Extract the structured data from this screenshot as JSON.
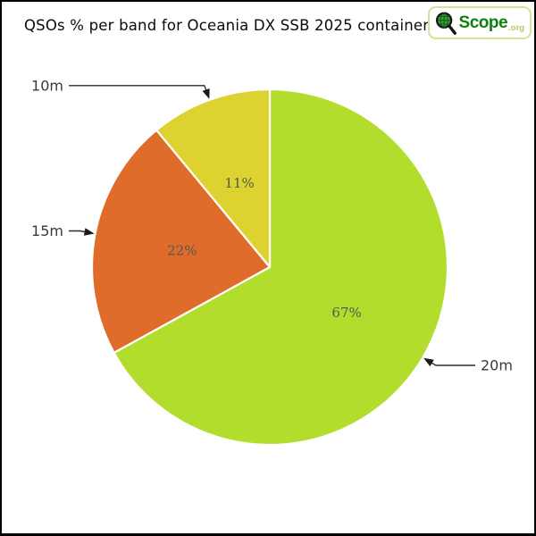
{
  "page": {
    "title": "QSOs % per band for Oceania DX SSB 2025 container."
  },
  "logo": {
    "name": "Scope",
    "tld": ".org",
    "icon": "magnifier-globe-icon",
    "brand_color": "#0d810d",
    "tld_color": "#b6c46a",
    "border_color": "#d9e096"
  },
  "chart_data": {
    "type": "pie",
    "title": "QSOs % per band for Oceania DX SSB 2025 container.",
    "labels": [
      "20m",
      "15m",
      "10m"
    ],
    "values": [
      67,
      22,
      11
    ],
    "percent_labels": [
      "67%",
      "22%",
      "11%"
    ],
    "colors": [
      "#b3dd2c",
      "#e06c2b",
      "#ddd22f"
    ],
    "separator_color": "#ffffff",
    "percent_label_color": "#4c5c52",
    "callout_label_color": "#3a3a3a",
    "start_angle": "12 o'clock",
    "direction": "clockwise",
    "legend_position": "none (arrow callouts)"
  }
}
